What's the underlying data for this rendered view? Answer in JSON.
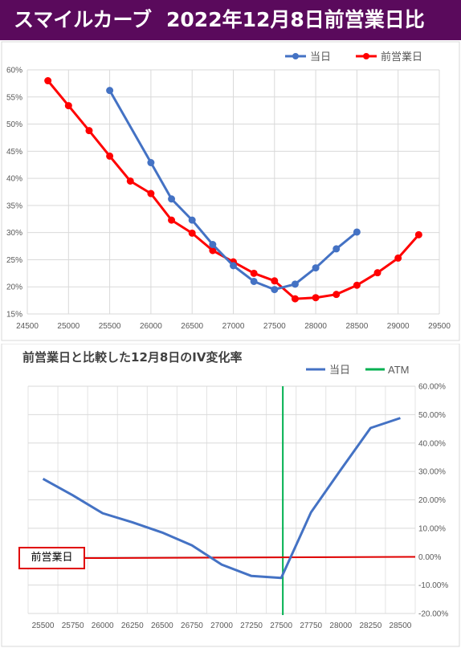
{
  "header": {
    "title_left": "スマイルカーブ",
    "title_right": "2022年12月8日前営業日比",
    "bg_color": "#5a0a5c"
  },
  "chart_data": [
    {
      "type": "line",
      "title": "",
      "legend_position": "top-right",
      "grid": true,
      "xlim": [
        24500,
        29500
      ],
      "xticks": [
        "24500",
        "25000",
        "25500",
        "26000",
        "26500",
        "27000",
        "27500",
        "28000",
        "28500",
        "29000",
        "29500"
      ],
      "ylim": [
        0.15,
        0.6
      ],
      "yticks": [
        "15%",
        "20%",
        "25%",
        "30%",
        "35%",
        "40%",
        "45%",
        "50%",
        "55%",
        "60%"
      ],
      "series": [
        {
          "name": "当日",
          "color": "#4472c4",
          "x": [
            25500,
            26000,
            26250,
            26500,
            26750,
            27000,
            27250,
            27500,
            27750,
            28000,
            28250,
            28500
          ],
          "y": [
            0.562,
            0.429,
            0.362,
            0.323,
            0.278,
            0.239,
            0.21,
            0.195,
            0.205,
            0.235,
            0.27,
            0.301
          ]
        },
        {
          "name": "前営業日",
          "color": "#ff0000",
          "x": [
            24750,
            25000,
            25250,
            25500,
            25750,
            26000,
            26250,
            26500,
            26750,
            27000,
            27250,
            27500,
            27750,
            28000,
            28250,
            28500,
            28750,
            29000,
            29250
          ],
          "y": [
            0.58,
            0.534,
            0.488,
            0.441,
            0.395,
            0.372,
            0.323,
            0.299,
            0.267,
            0.246,
            0.225,
            0.211,
            0.178,
            0.18,
            0.186,
            0.203,
            0.226,
            0.253,
            0.296
          ]
        }
      ]
    },
    {
      "type": "line",
      "title": "前営業日と比較した12月8日のIV変化率",
      "legend_position": "top-right",
      "grid": true,
      "categories": [
        "25500",
        "25750",
        "26000",
        "26250",
        "26500",
        "26750",
        "27000",
        "27250",
        "27500",
        "27750",
        "28000",
        "28250",
        "28500"
      ],
      "ylim": [
        -0.2,
        0.6
      ],
      "yticks": [
        "-20.00%",
        "-10.00%",
        "0.00%",
        "10.00%",
        "20.00%",
        "30.00%",
        "40.00%",
        "50.00%",
        "60.00%"
      ],
      "series": [
        {
          "name": "当日",
          "color": "#4472c4",
          "values": [
            0.274,
            0.216,
            0.153,
            0.121,
            0.085,
            0.04,
            -0.028,
            -0.068,
            -0.075,
            0.156,
            0.306,
            0.453,
            0.488
          ]
        }
      ],
      "atm": {
        "label": "ATM",
        "category": "27500",
        "color": "#00b050"
      },
      "reference_line": {
        "label": "前営業日",
        "value": -0.005,
        "color": "#e00000"
      }
    }
  ]
}
